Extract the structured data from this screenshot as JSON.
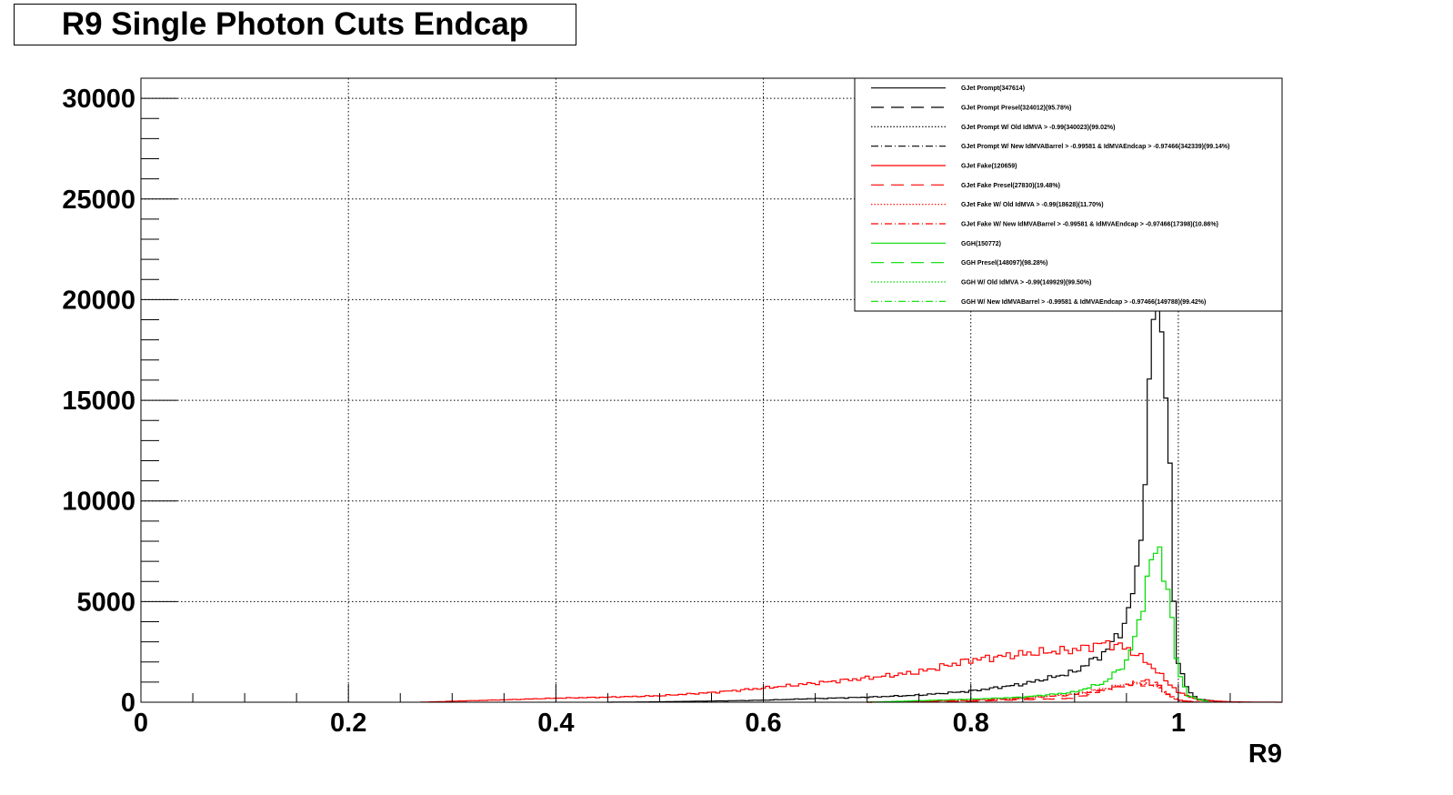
{
  "chart_data": {
    "type": "line",
    "title": "R9 Single Photon Cuts Endcap",
    "xlabel": "R9",
    "ylabel": "",
    "xlim": [
      0,
      1.1
    ],
    "ylim": [
      0,
      31000
    ],
    "grid": true,
    "legend_position": "top-right",
    "x_ticks": [
      0,
      0.2,
      0.4,
      0.6,
      0.8,
      1
    ],
    "x_tick_labels": [
      "0",
      "0.2",
      "0.4",
      "0.6",
      "0.8",
      "1"
    ],
    "y_ticks": [
      0,
      5000,
      10000,
      15000,
      20000,
      25000,
      30000
    ],
    "y_tick_labels": [
      "0",
      "5000",
      "10000",
      "15000",
      "20000",
      "25000",
      "30000"
    ],
    "series": [
      {
        "name": "GJet Prompt(347614)",
        "color": "#000000",
        "style": "solid",
        "points": [
          [
            0.45,
            0
          ],
          [
            0.5,
            20
          ],
          [
            0.55,
            60
          ],
          [
            0.6,
            100
          ],
          [
            0.65,
            180
          ],
          [
            0.7,
            250
          ],
          [
            0.75,
            350
          ],
          [
            0.8,
            550
          ],
          [
            0.85,
            900
          ],
          [
            0.9,
            1500
          ],
          [
            0.93,
            2500
          ],
          [
            0.95,
            4000
          ],
          [
            0.96,
            6500
          ],
          [
            0.97,
            12000
          ],
          [
            0.975,
            19000
          ],
          [
            0.98,
            23000
          ],
          [
            0.985,
            18000
          ],
          [
            0.99,
            14000
          ],
          [
            0.995,
            6000
          ],
          [
            1.0,
            2000
          ],
          [
            1.01,
            500
          ],
          [
            1.02,
            150
          ],
          [
            1.04,
            30
          ],
          [
            1.06,
            0
          ]
        ]
      },
      {
        "name": "GJet Prompt Presel(324012)(95.78%)",
        "color": "#000000",
        "style": "long-dash",
        "points": []
      },
      {
        "name": "GJet Prompt W/ Old IdMVA > -0.99(340023)(99.02%)",
        "color": "#000000",
        "style": "dotted",
        "points": []
      },
      {
        "name": "GJet Prompt W/ New IdMVABarrel > -0.99581 & IdMVAEndcap > -0.97466(342339)(99.14%)",
        "color": "#000000",
        "style": "dash-dot",
        "points": []
      },
      {
        "name": "GJet Fake(120659)",
        "color": "#ff0000",
        "style": "solid",
        "points": [
          [
            0.27,
            0
          ],
          [
            0.3,
            50
          ],
          [
            0.35,
            120
          ],
          [
            0.4,
            200
          ],
          [
            0.45,
            250
          ],
          [
            0.5,
            320
          ],
          [
            0.55,
            480
          ],
          [
            0.6,
            700
          ],
          [
            0.65,
            950
          ],
          [
            0.7,
            1200
          ],
          [
            0.75,
            1500
          ],
          [
            0.8,
            2100
          ],
          [
            0.85,
            2400
          ],
          [
            0.9,
            2600
          ],
          [
            0.93,
            2950
          ],
          [
            0.95,
            2700
          ],
          [
            0.97,
            2000
          ],
          [
            0.99,
            1000
          ],
          [
            1.0,
            500
          ],
          [
            1.02,
            100
          ],
          [
            1.05,
            20
          ],
          [
            1.1,
            0
          ]
        ]
      },
      {
        "name": "GJet Fake Presel(27830)(19.48%)",
        "color": "#ff0000",
        "style": "long-dash",
        "points": [
          [
            0.7,
            0
          ],
          [
            0.8,
            50
          ],
          [
            0.9,
            200
          ],
          [
            0.93,
            600
          ],
          [
            0.95,
            900
          ],
          [
            0.97,
            1100
          ],
          [
            0.98,
            900
          ],
          [
            0.99,
            400
          ],
          [
            1.0,
            100
          ],
          [
            1.02,
            0
          ]
        ]
      },
      {
        "name": "GJet Fake W/ Old IdMVA > -0.99(18628)(11.70%)",
        "color": "#ff0000",
        "style": "dotted",
        "points": [
          [
            0.7,
            0
          ],
          [
            0.8,
            100
          ],
          [
            0.85,
            200
          ],
          [
            0.9,
            400
          ],
          [
            0.93,
            700
          ],
          [
            0.95,
            900
          ],
          [
            0.97,
            950
          ],
          [
            0.98,
            800
          ],
          [
            0.99,
            400
          ],
          [
            1.0,
            100
          ],
          [
            1.02,
            0
          ]
        ]
      },
      {
        "name": "GJet Fake W/ New IdMVABarrel > -0.99581 & IdMVAEndcap > -0.97466(17398)(10.86%)",
        "color": "#ff0000",
        "style": "dash-dot",
        "points": [
          [
            0.7,
            0
          ],
          [
            0.8,
            90
          ],
          [
            0.85,
            180
          ],
          [
            0.9,
            380
          ],
          [
            0.93,
            650
          ],
          [
            0.95,
            850
          ],
          [
            0.97,
            900
          ],
          [
            0.98,
            750
          ],
          [
            0.99,
            380
          ],
          [
            1.0,
            90
          ],
          [
            1.02,
            0
          ]
        ]
      },
      {
        "name": "GGH(150772)",
        "color": "#00dd00",
        "style": "solid",
        "points": [
          [
            0.7,
            0
          ],
          [
            0.8,
            150
          ],
          [
            0.85,
            250
          ],
          [
            0.9,
            500
          ],
          [
            0.93,
            1000
          ],
          [
            0.95,
            2000
          ],
          [
            0.96,
            3500
          ],
          [
            0.97,
            6000
          ],
          [
            0.98,
            8000
          ],
          [
            0.99,
            5500
          ],
          [
            1.0,
            1500
          ],
          [
            1.01,
            300
          ],
          [
            1.03,
            0
          ]
        ]
      },
      {
        "name": "GGH Presel(148097)(98.28%)",
        "color": "#00dd00",
        "style": "long-dash",
        "points": []
      },
      {
        "name": "GGH W/ Old IdMVA > -0.99(149929)(99.50%)",
        "color": "#00dd00",
        "style": "dotted",
        "points": []
      },
      {
        "name": "GGH W/ New IdMVABarrel > -0.99581 & IdMVAEndcap > -0.97466(149788)(99.42%)",
        "color": "#00dd00",
        "style": "dash-dot",
        "points": []
      }
    ]
  }
}
